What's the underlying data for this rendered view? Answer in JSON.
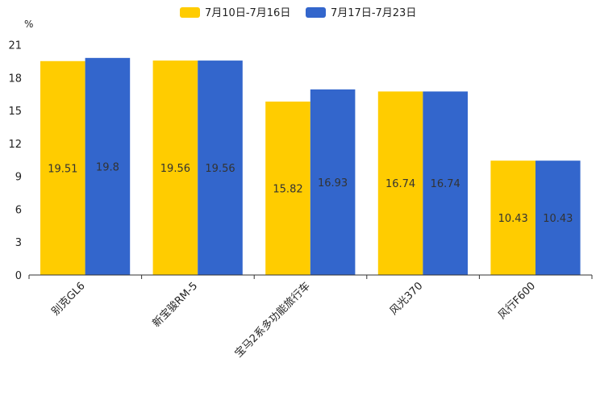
{
  "chart_data": {
    "type": "bar",
    "unit": "%",
    "categories": [
      "别克GL6",
      "新宝骏RM-5",
      "宝马2系多功能旅行车",
      "风光370",
      "风行F600"
    ],
    "series": [
      {
        "name": "7月10日-7月16日",
        "color": "#FFCC00",
        "values": [
          19.51,
          19.56,
          15.82,
          16.74,
          10.43
        ]
      },
      {
        "name": "7月17日-7月23日",
        "color": "#3366CC",
        "values": [
          19.8,
          19.56,
          16.93,
          16.74,
          10.43
        ]
      }
    ],
    "yticks": [
      0,
      3,
      6,
      9,
      12,
      15,
      18,
      21
    ],
    "ylim": [
      0,
      21.7
    ],
    "legend_position": "top-center"
  }
}
